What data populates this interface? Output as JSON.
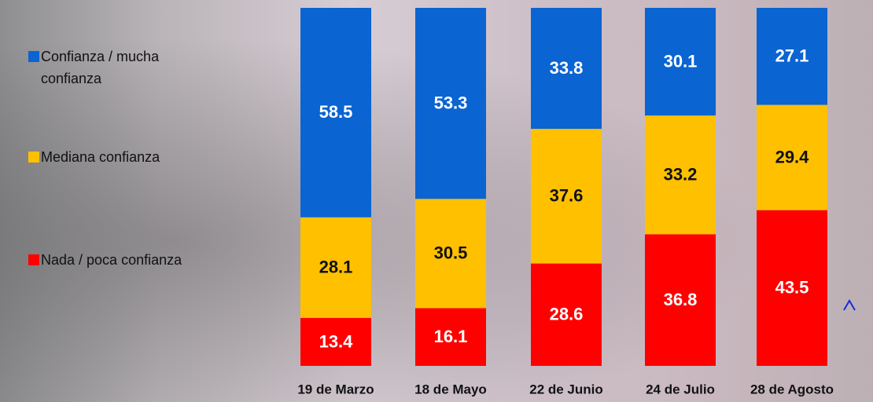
{
  "chart_data": {
    "type": "bar",
    "stacked": true,
    "categories": [
      "19 de Marzo",
      "18 de Mayo",
      "22 de Junio",
      "24 de Julio",
      "28 de Agosto"
    ],
    "series": [
      {
        "name": "Confianza / mucha confianza",
        "color": "#0a64d2",
        "values": [
          58.5,
          53.3,
          33.8,
          30.1,
          27.1
        ]
      },
      {
        "name": "Mediana confianza",
        "color": "#ffc000",
        "values": [
          28.1,
          30.5,
          37.6,
          33.2,
          29.4
        ]
      },
      {
        "name": "Nada / poca confianza",
        "color": "#ff0000",
        "values": [
          13.4,
          16.1,
          28.6,
          36.8,
          43.5
        ]
      }
    ]
  }
}
